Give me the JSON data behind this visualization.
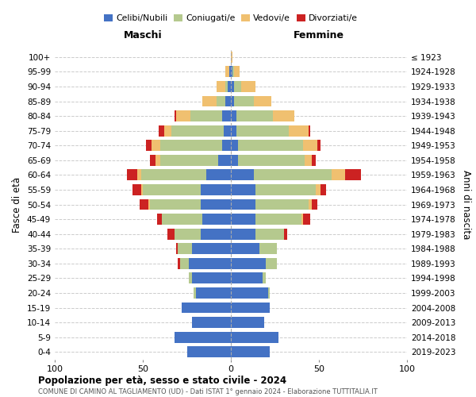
{
  "age_groups": [
    "0-4",
    "5-9",
    "10-14",
    "15-19",
    "20-24",
    "25-29",
    "30-34",
    "35-39",
    "40-44",
    "45-49",
    "50-54",
    "55-59",
    "60-64",
    "65-69",
    "70-74",
    "75-79",
    "80-84",
    "85-89",
    "90-94",
    "95-99",
    "100+"
  ],
  "birth_years": [
    "2019-2023",
    "2014-2018",
    "2009-2013",
    "2004-2008",
    "1999-2003",
    "1994-1998",
    "1989-1993",
    "1984-1988",
    "1979-1983",
    "1974-1978",
    "1969-1973",
    "1964-1968",
    "1959-1963",
    "1954-1958",
    "1949-1953",
    "1944-1948",
    "1939-1943",
    "1934-1938",
    "1929-1933",
    "1924-1928",
    "≤ 1923"
  ],
  "colors": {
    "celibe": "#4472c4",
    "coniugato": "#b5c98e",
    "vedovo": "#f0c070",
    "divorziato": "#cc2222"
  },
  "maschi": {
    "celibe": [
      25,
      32,
      22,
      28,
      20,
      22,
      24,
      22,
      17,
      16,
      17,
      17,
      14,
      7,
      5,
      4,
      5,
      3,
      2,
      1,
      0
    ],
    "coniugato": [
      0,
      0,
      0,
      0,
      1,
      2,
      5,
      8,
      15,
      23,
      29,
      33,
      37,
      33,
      35,
      30,
      18,
      5,
      1,
      0,
      0
    ],
    "vedovo": [
      0,
      0,
      0,
      0,
      0,
      0,
      0,
      0,
      0,
      0,
      1,
      1,
      2,
      3,
      5,
      4,
      8,
      8,
      5,
      2,
      0
    ],
    "divorziato": [
      0,
      0,
      0,
      0,
      0,
      0,
      1,
      1,
      4,
      3,
      5,
      5,
      6,
      3,
      3,
      3,
      1,
      0,
      0,
      0,
      0
    ]
  },
  "femmine": {
    "celibe": [
      22,
      27,
      19,
      22,
      21,
      18,
      20,
      16,
      14,
      14,
      14,
      14,
      13,
      4,
      4,
      3,
      3,
      2,
      2,
      1,
      0
    ],
    "coniugato": [
      0,
      0,
      0,
      0,
      1,
      2,
      6,
      10,
      16,
      26,
      30,
      34,
      44,
      38,
      37,
      30,
      21,
      11,
      4,
      1,
      0
    ],
    "vedovo": [
      0,
      0,
      0,
      0,
      0,
      0,
      0,
      0,
      0,
      1,
      2,
      3,
      8,
      4,
      8,
      11,
      12,
      10,
      8,
      3,
      1
    ],
    "divorziato": [
      0,
      0,
      0,
      0,
      0,
      0,
      0,
      0,
      2,
      4,
      3,
      3,
      9,
      2,
      2,
      1,
      0,
      0,
      0,
      0,
      0
    ]
  },
  "xlim": 100,
  "title": "Popolazione per età, sesso e stato civile - 2024",
  "subtitle": "COMUNE DI CAMINO AL TAGLIAMENTO (UD) - Dati ISTAT 1° gennaio 2024 - Elaborazione TUTTITALIA.IT",
  "xlabel_maschi": "Maschi",
  "xlabel_femmine": "Femmine",
  "ylabel_left": "Fasce di età",
  "ylabel_right": "Anni di nascita",
  "legend_labels": [
    "Celibi/Nubili",
    "Coniugati/e",
    "Vedovi/e",
    "Divorziati/e"
  ]
}
